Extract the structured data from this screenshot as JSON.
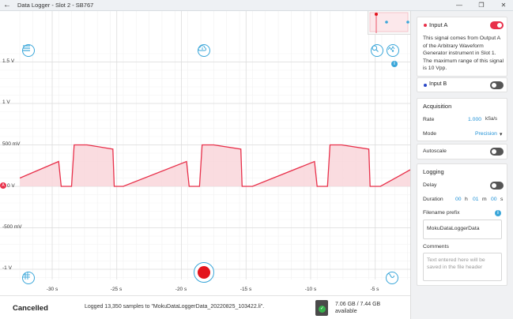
{
  "window": {
    "title": "Data Logger - Slot 2 - SB767",
    "back_glyph": "←",
    "minimize_glyph": "—",
    "restore_glyph": "❐",
    "close_glyph": "✕"
  },
  "plot": {
    "y_labels": [
      "1.5 V",
      "1 V",
      "500 mV",
      "0 V",
      "-500 mV",
      "-1 V"
    ],
    "x_labels": [
      "-30 s",
      "-25 s",
      "-20 s",
      "-15 s",
      "-10 s",
      "-5 s"
    ],
    "zero_marker_text": "A",
    "info_glyph": "i",
    "trace_color": "#e8304a",
    "fill_color": "#f9d3d8"
  },
  "chart_data": {
    "type": "line",
    "x_unit": "s",
    "y_unit": "V",
    "xlim": [
      -32.5,
      -1
    ],
    "ylim": [
      -1.1,
      1.65
    ],
    "grid": true,
    "series": [
      {
        "name": "Input A",
        "x": [
          -32.5,
          -29.5,
          -29.3,
          -28.5,
          -28.3,
          -27.3,
          -25.3,
          -25.2,
          -24.5,
          -19.6,
          -19.4,
          -18.6,
          -18.4,
          -17.5,
          -15.4,
          -15.3,
          -14.5,
          -9.7,
          -9.5,
          -8.7,
          -8.5,
          -7.6,
          -5.5,
          -5.4,
          -4.6,
          -1.0
        ],
        "y": [
          0.1,
          0.3,
          0.0,
          0.0,
          0.5,
          0.5,
          0.45,
          0.0,
          0.0,
          0.3,
          0.0,
          0.0,
          0.5,
          0.5,
          0.45,
          0.0,
          0.0,
          0.3,
          0.0,
          0.0,
          0.5,
          0.5,
          0.45,
          0.0,
          0.0,
          0.2
        ]
      }
    ]
  },
  "controls": {
    "menu_icon": "menu-icon",
    "cloud_icon": "cloud-upload-icon",
    "zoom_icon": "zoom-icon",
    "settings_icon": "trace-settings-icon",
    "grid_icon": "cursor-grid-icon",
    "wave_icon": "waveform-icon",
    "record_icon": "record-icon"
  },
  "status": {
    "state": "Cancelled",
    "logged_text": "Logged 13,350 samples to \"MokuDataLoggerData_20220825_103422.li\".",
    "storage_used": "7.06 GB / 7.44 GB",
    "storage_available": "available",
    "sd_check_glyph": "✓"
  },
  "panel": {
    "input_a": {
      "label": "Input A",
      "color": "#e8304a",
      "enabled": true,
      "description": "This signal comes from Output A of the Arbitrary Waveform Generator instrument in Slot 1. The maximum range of this signal is 10 Vpp."
    },
    "input_b": {
      "label": "Input B",
      "color": "#2b49c7",
      "enabled": false
    },
    "acquisition": {
      "title": "Acquisition",
      "rate_label": "Rate",
      "rate_value": "1.000",
      "rate_unit": "kSa/s",
      "mode_label": "Mode",
      "mode_value": "Precision",
      "mode_caret": "▾"
    },
    "autoscale": {
      "label": "Autoscale",
      "enabled": false
    },
    "logging": {
      "title": "Logging",
      "delay_label": "Delay",
      "delay_enabled": false,
      "duration_label": "Duration",
      "duration_h": "00",
      "h_unit": "h",
      "duration_m": "01",
      "m_unit": "m",
      "duration_s": "00",
      "s_unit": "s",
      "prefix_label": "Filename prefix",
      "prefix_value": "MokuDataLoggerData",
      "info_glyph": "i",
      "comments_label": "Comments",
      "comments_placeholder": "Text entered here will be saved in the file header"
    }
  }
}
